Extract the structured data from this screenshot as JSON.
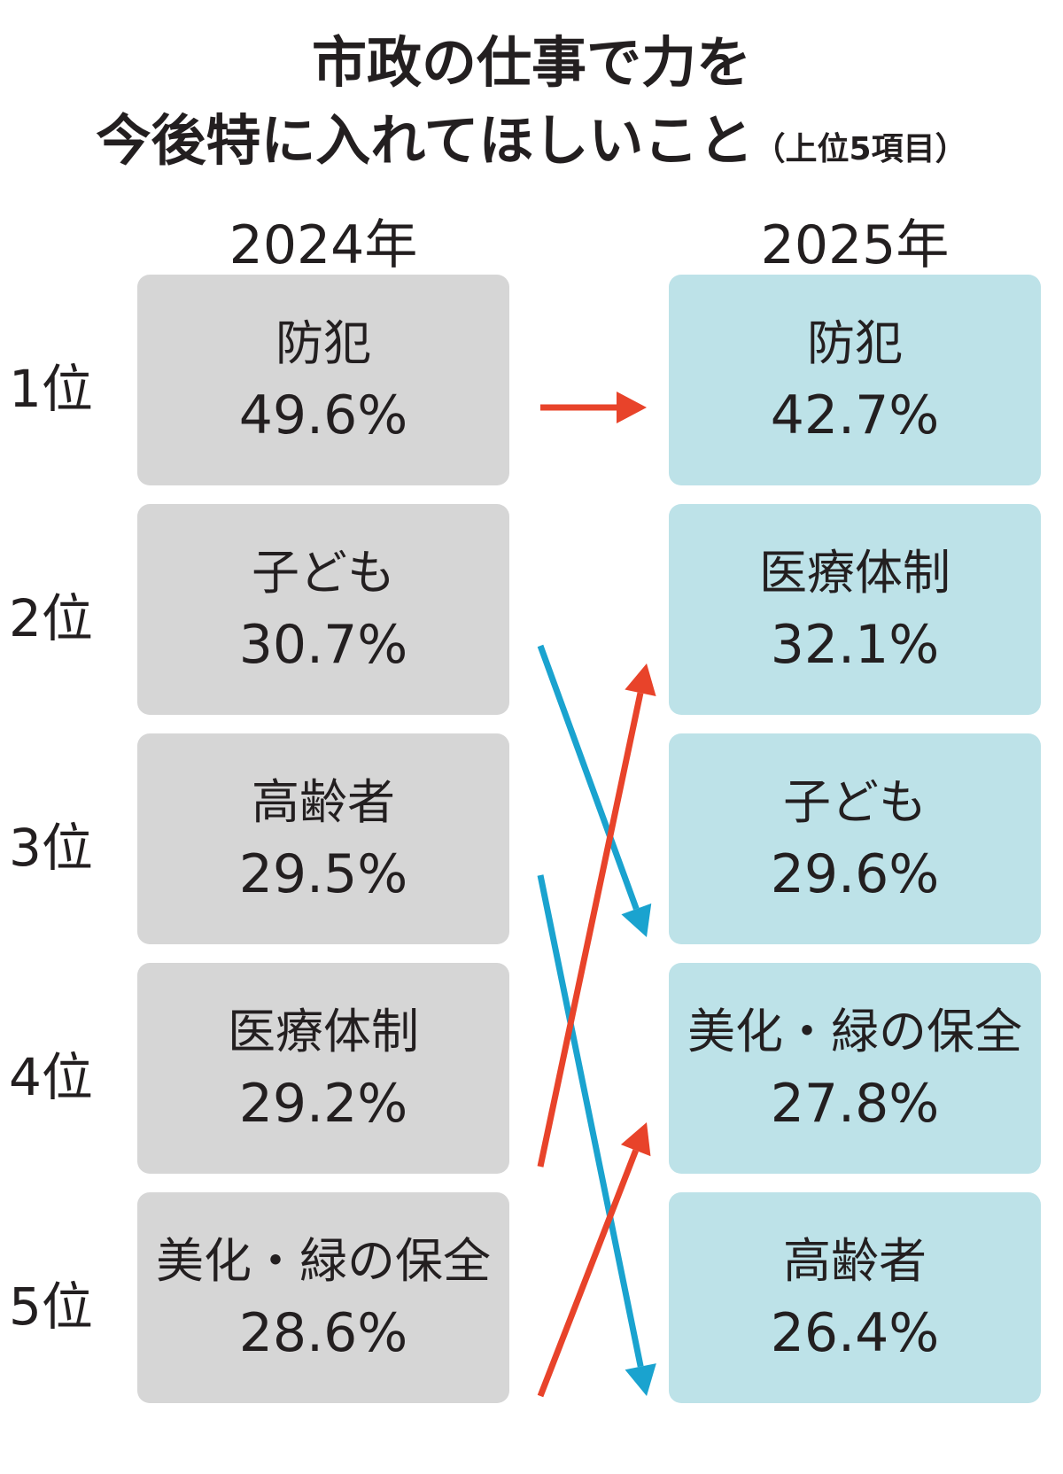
{
  "title": {
    "line1": "市政の仕事で力を",
    "line2": "今後特に入れてほしいこと",
    "line2_suffix": "（上位5項目）"
  },
  "columns": {
    "left": "2024年",
    "right": "2025年"
  },
  "ranks": [
    "1位",
    "2位",
    "3位",
    "4位",
    "5位"
  ],
  "colors": {
    "box_2024": "#d6d6d6",
    "box_2025": "#bde2e8",
    "arrow_up": "#e8432a",
    "arrow_down": "#1aa3cf",
    "arrow_same": "#e8432a"
  },
  "chart_data": {
    "type": "table",
    "years": [
      "2024年",
      "2025年"
    ],
    "y2024": [
      {
        "name": "防犯",
        "value": 49.6,
        "label": "49.6%"
      },
      {
        "name": "子ども",
        "value": 30.7,
        "label": "30.7%"
      },
      {
        "name": "高齢者",
        "value": 29.5,
        "label": "29.5%"
      },
      {
        "name": "医療体制",
        "value": 29.2,
        "label": "29.2%"
      },
      {
        "name": "美化・緑の保全",
        "value": 28.6,
        "label": "28.6%"
      }
    ],
    "y2025": [
      {
        "name": "防犯",
        "value": 42.7,
        "label": "42.7%"
      },
      {
        "name": "医療体制",
        "value": 32.1,
        "label": "32.1%"
      },
      {
        "name": "子ども",
        "value": 29.6,
        "label": "29.6%"
      },
      {
        "name": "美化・緑の保全",
        "value": 27.8,
        "label": "27.8%"
      },
      {
        "name": "高齢者",
        "value": 26.4,
        "label": "26.4%"
      }
    ],
    "rank_changes": [
      {
        "item": "防犯",
        "from": 1,
        "to": 1,
        "direction": "same"
      },
      {
        "item": "子ども",
        "from": 2,
        "to": 3,
        "direction": "down"
      },
      {
        "item": "高齢者",
        "from": 3,
        "to": 5,
        "direction": "down"
      },
      {
        "item": "医療体制",
        "from": 4,
        "to": 2,
        "direction": "up"
      },
      {
        "item": "美化・緑の保全",
        "from": 5,
        "to": 4,
        "direction": "up"
      }
    ]
  }
}
